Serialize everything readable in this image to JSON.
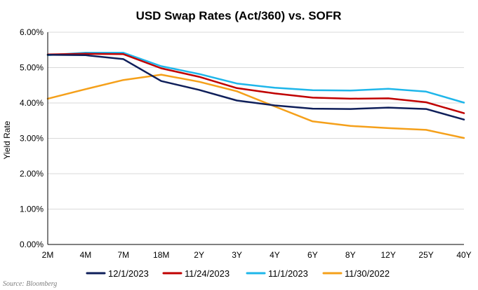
{
  "chart_data": {
    "type": "line",
    "title": "USD Swap Rates (Act/360) vs. SOFR",
    "ylabel": "Yield Rate",
    "xlabel": "",
    "ylim": [
      0,
      6
    ],
    "ytick_values": [
      0,
      1,
      2,
      3,
      4,
      5,
      6
    ],
    "ytick_labels": [
      "0.00%",
      "1.00%",
      "2.00%",
      "3.00%",
      "4.00%",
      "5.00%",
      "6.00%"
    ],
    "categories": [
      "2M",
      "4M",
      "7M",
      "18M",
      "2Y",
      "3Y",
      "4Y",
      "6Y",
      "8Y",
      "12Y",
      "25Y",
      "40Y"
    ],
    "grid": "horizontal",
    "legend_position": "bottom",
    "series": [
      {
        "name": "12/1/2023",
        "color": "#0f1f5a",
        "values": [
          5.36,
          5.35,
          5.24,
          4.62,
          4.37,
          4.07,
          3.93,
          3.84,
          3.83,
          3.87,
          3.83,
          3.53
        ]
      },
      {
        "name": "11/24/2023",
        "color": "#c00000",
        "values": [
          5.37,
          5.39,
          5.38,
          4.98,
          4.74,
          4.42,
          4.27,
          4.15,
          4.12,
          4.13,
          4.02,
          3.71
        ]
      },
      {
        "name": "11/1/2023",
        "color": "#1eb6ea",
        "values": [
          5.35,
          5.42,
          5.42,
          5.04,
          4.82,
          4.55,
          4.43,
          4.36,
          4.35,
          4.4,
          4.32,
          4.01
        ]
      },
      {
        "name": "11/30/2022",
        "color": "#f5a01a",
        "values": [
          4.12,
          4.39,
          4.65,
          4.8,
          4.6,
          4.33,
          3.9,
          3.48,
          3.35,
          3.29,
          3.24,
          3.01
        ]
      }
    ]
  },
  "source": "Source: Bloomberg"
}
